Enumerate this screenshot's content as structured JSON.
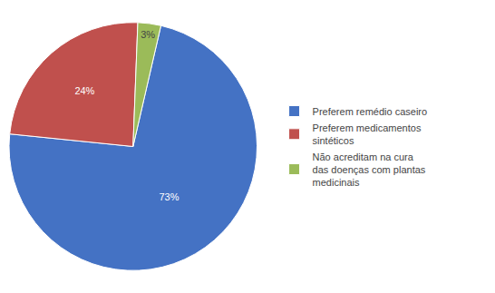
{
  "chart_data": {
    "type": "pie",
    "categories": [
      "Preferem remédio caseiro",
      "Preferem medicamentos\nsintéticos",
      "Não acreditam na cura\ndas doenças com plantas\nmedicinais"
    ],
    "values": [
      73,
      24,
      3
    ],
    "value_labels": [
      "73%",
      "24%",
      "3%"
    ],
    "data_labels": true,
    "colors": [
      "#4472C4",
      "#C0504D",
      "#9BBB59"
    ],
    "legend": "right"
  }
}
